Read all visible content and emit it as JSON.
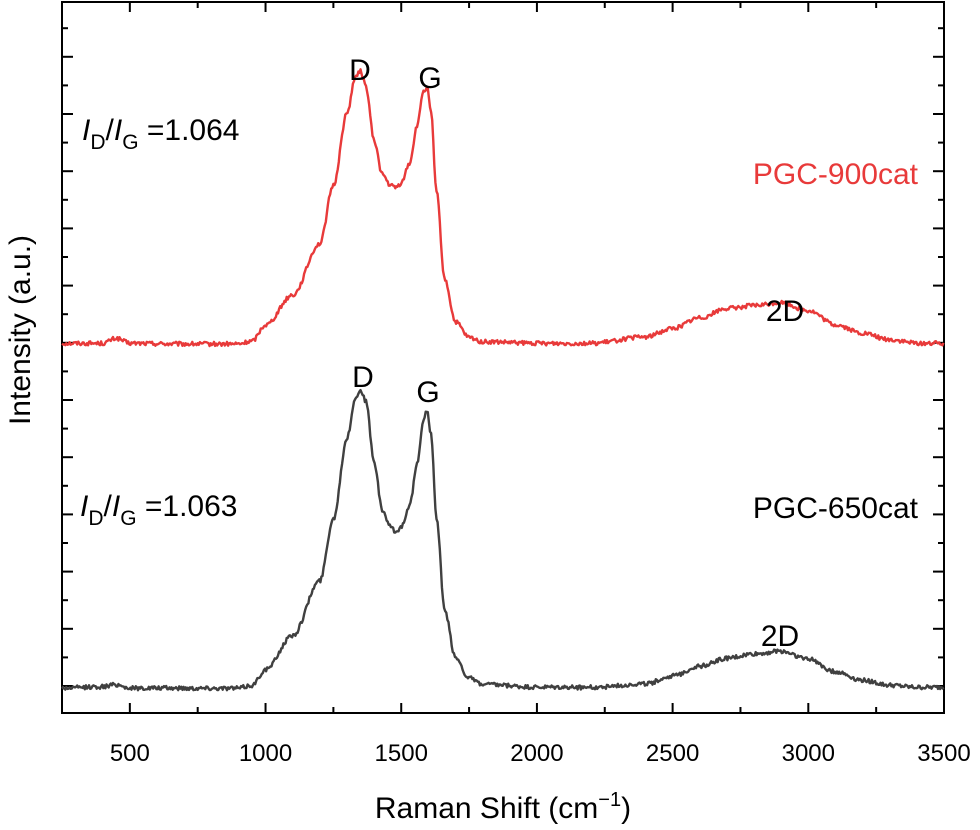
{
  "chart_data": {
    "type": "line",
    "title": "",
    "xlabel": "Raman Shift (cm",
    "xlabel_sup": "−1",
    "xlabel_close": ")",
    "ylabel": "Intensity (a.u.)",
    "xlim": [
      250,
      3500
    ],
    "ylim": [
      0,
      1
    ],
    "x_ticks": [
      500,
      1000,
      1500,
      2000,
      2500,
      3000,
      3500
    ],
    "x_tick_labels": [
      "500",
      "1000",
      "1500",
      "2000",
      "2500",
      "3000",
      "3500"
    ],
    "y_ticks_shown": false,
    "grid": false,
    "series": [
      {
        "name": "PGC-900cat",
        "color": "#e83a3a",
        "x": [
          250,
          400,
          450,
          500,
          700,
          900,
          950,
          1000,
          1100,
          1200,
          1250,
          1300,
          1330,
          1350,
          1370,
          1400,
          1430,
          1460,
          1480,
          1500,
          1530,
          1560,
          1580,
          1595,
          1610,
          1630,
          1660,
          1700,
          1750,
          1800,
          2000,
          2200,
          2400,
          2500,
          2600,
          2700,
          2800,
          2900,
          3000,
          3100,
          3200,
          3300,
          3400,
          3500
        ],
        "y": [
          0.52,
          0.52,
          0.527,
          0.52,
          0.519,
          0.519,
          0.523,
          0.546,
          0.588,
          0.66,
          0.742,
          0.843,
          0.893,
          0.903,
          0.881,
          0.805,
          0.758,
          0.742,
          0.739,
          0.745,
          0.773,
          0.827,
          0.873,
          0.88,
          0.843,
          0.733,
          0.61,
          0.55,
          0.528,
          0.522,
          0.52,
          0.52,
          0.529,
          0.541,
          0.556,
          0.569,
          0.573,
          0.577,
          0.566,
          0.546,
          0.534,
          0.525,
          0.52,
          0.52
        ]
      },
      {
        "name": "PGC-650cat",
        "color": "#404040",
        "x": [
          250,
          400,
          450,
          500,
          700,
          900,
          950,
          1000,
          1100,
          1200,
          1250,
          1300,
          1330,
          1350,
          1370,
          1400,
          1430,
          1460,
          1480,
          1500,
          1530,
          1560,
          1580,
          1595,
          1610,
          1630,
          1660,
          1700,
          1750,
          1800,
          2000,
          2200,
          2400,
          2500,
          2600,
          2700,
          2800,
          2900,
          3000,
          3100,
          3200,
          3300,
          3400,
          3500
        ],
        "y": [
          0.035,
          0.037,
          0.04,
          0.035,
          0.035,
          0.035,
          0.039,
          0.061,
          0.109,
          0.186,
          0.273,
          0.386,
          0.441,
          0.455,
          0.438,
          0.353,
          0.285,
          0.262,
          0.254,
          0.262,
          0.291,
          0.35,
          0.41,
          0.426,
          0.391,
          0.274,
          0.144,
          0.078,
          0.049,
          0.04,
          0.036,
          0.036,
          0.041,
          0.052,
          0.066,
          0.077,
          0.083,
          0.087,
          0.076,
          0.058,
          0.046,
          0.039,
          0.036,
          0.036
        ]
      }
    ],
    "annotations": {
      "red_D": "D",
      "red_G": "G",
      "red_2D": "2D",
      "red_ratio_I1": "I",
      "red_ratio_sub1": "D",
      "red_ratio_slash": "/",
      "red_ratio_I2": "I",
      "red_ratio_sub2": "G",
      "red_ratio_value": " =1.064",
      "red_label": "PGC-900cat",
      "black_D": "D",
      "black_G": "G",
      "black_2D": "2D",
      "black_ratio_I1": "I",
      "black_ratio_sub1": "D",
      "black_ratio_slash": "/",
      "black_ratio_I2": "I",
      "black_ratio_sub2": "G",
      "black_ratio_value": " =1.063",
      "black_label": "PGC-650cat"
    }
  }
}
